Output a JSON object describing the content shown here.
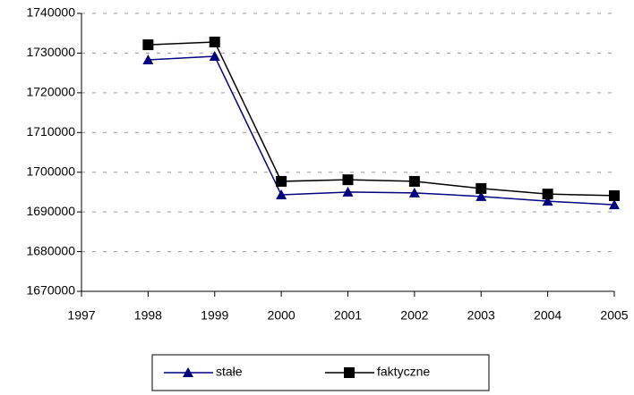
{
  "chart_data": {
    "type": "line",
    "x": [
      1998,
      1999,
      2000,
      2001,
      2002,
      2003,
      2004,
      2005
    ],
    "series": [
      {
        "name": "stałe",
        "color": "#000080",
        "marker": "triangle",
        "values": [
          1728300,
          1729200,
          1694300,
          1695000,
          1694800,
          1693900,
          1692700,
          1691800
        ]
      },
      {
        "name": "faktyczne",
        "color": "#000000",
        "marker": "square",
        "values": [
          1732100,
          1732800,
          1697700,
          1698100,
          1697700,
          1695900,
          1694500,
          1694100
        ]
      }
    ],
    "xlim": [
      1997,
      2005
    ],
    "xticks": [
      1997,
      1998,
      1999,
      2000,
      2001,
      2002,
      2003,
      2004,
      2005
    ],
    "ylim": [
      1670000,
      1740000
    ],
    "yticks": [
      1670000,
      1680000,
      1690000,
      1700000,
      1710000,
      1720000,
      1730000,
      1740000
    ],
    "grid": true,
    "legend": "bottom"
  }
}
